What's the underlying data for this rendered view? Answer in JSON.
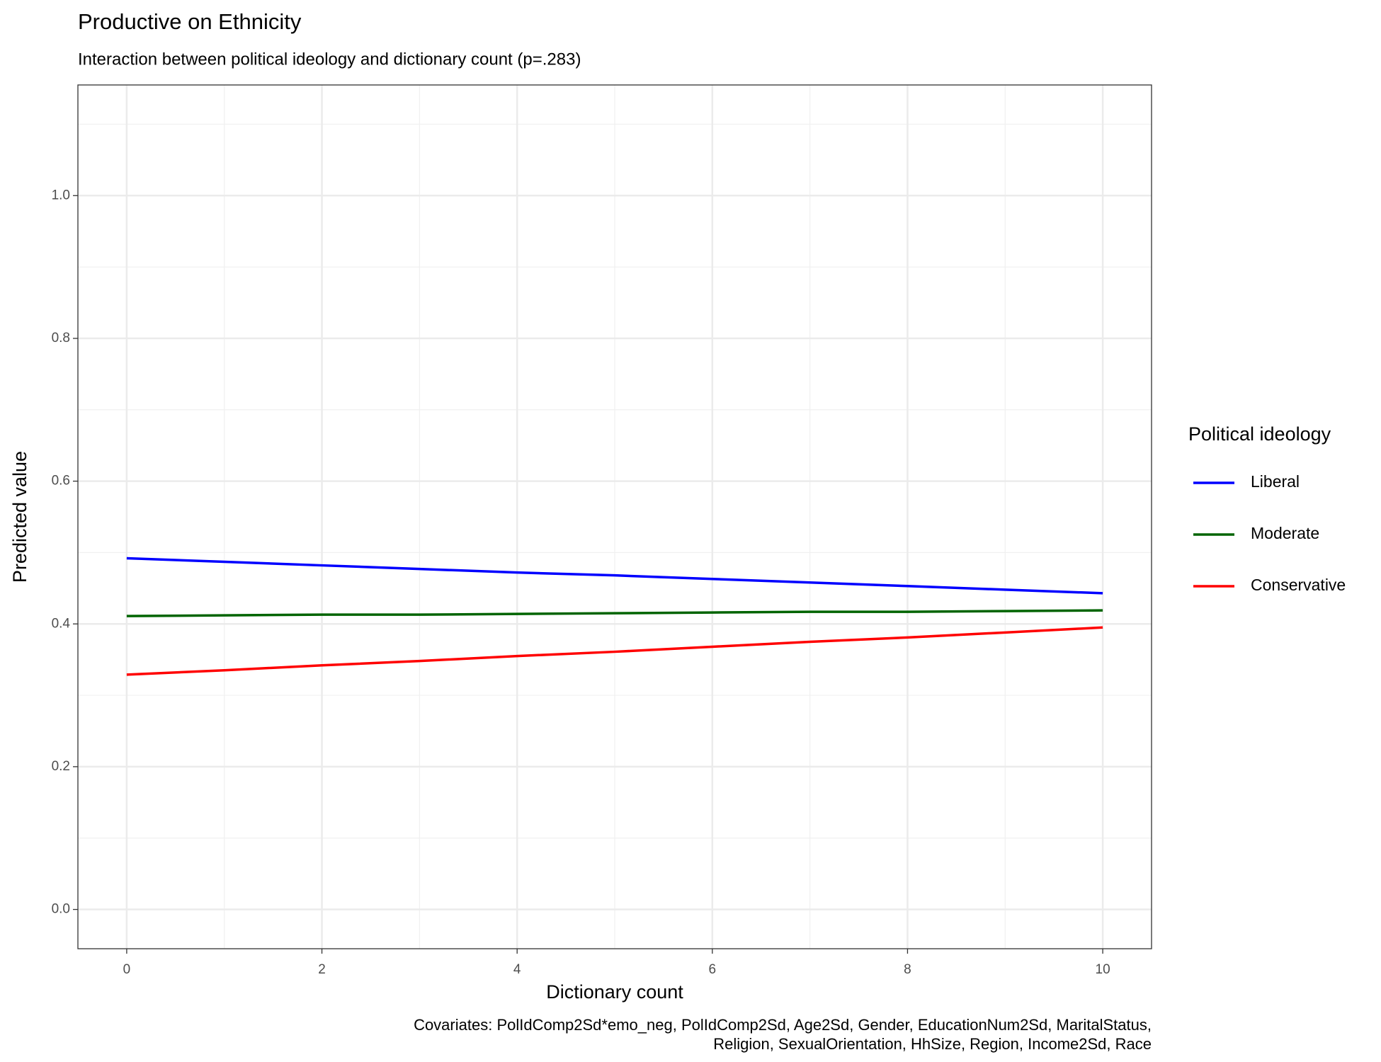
{
  "chart_data": {
    "type": "line",
    "title": "Productive on Ethnicity",
    "subtitle": "Interaction between political ideology and dictionary count (p=.283)",
    "x_label": "Dictionary count",
    "y_label": "Predicted value",
    "caption": [
      "Covariates: PolIdComp2Sd*emo_neg, PolIdComp2Sd, Age2Sd, Gender, EducationNum2Sd, MaritalStatus,",
      "Religion, SexualOrientation, HhSize, Region, Income2Sd, Race"
    ],
    "legend_title": "Political ideology",
    "legend_position": "right",
    "grid": true,
    "x": [
      0,
      1,
      2,
      3,
      4,
      5,
      6,
      7,
      8,
      9,
      10
    ],
    "series": [
      {
        "name": "Liberal",
        "color": "#0000ff",
        "values": [
          0.492,
          0.487,
          0.482,
          0.477,
          0.472,
          0.468,
          0.463,
          0.458,
          0.453,
          0.448,
          0.443
        ]
      },
      {
        "name": "Moderate",
        "color": "#006400",
        "values": [
          0.411,
          0.412,
          0.413,
          0.413,
          0.414,
          0.415,
          0.416,
          0.417,
          0.417,
          0.418,
          0.419
        ]
      },
      {
        "name": "Conservative",
        "color": "#ff0000",
        "values": [
          0.329,
          0.335,
          0.342,
          0.348,
          0.355,
          0.361,
          0.368,
          0.375,
          0.381,
          0.388,
          0.395
        ]
      }
    ],
    "xlim": [
      -0.5,
      10.5
    ],
    "xticks": [
      0,
      2,
      4,
      6,
      8,
      10
    ],
    "ylim": [
      -0.055,
      1.155
    ],
    "yticks": [
      {
        "value": 0,
        "label": "0.0"
      },
      {
        "value": 0.2,
        "label": "0.2"
      },
      {
        "value": 0.4,
        "label": "0.4"
      },
      {
        "value": 0.6,
        "label": "0.6"
      },
      {
        "value": 0.8,
        "label": "0.8"
      },
      {
        "value": 1,
        "label": "1.0"
      }
    ]
  }
}
